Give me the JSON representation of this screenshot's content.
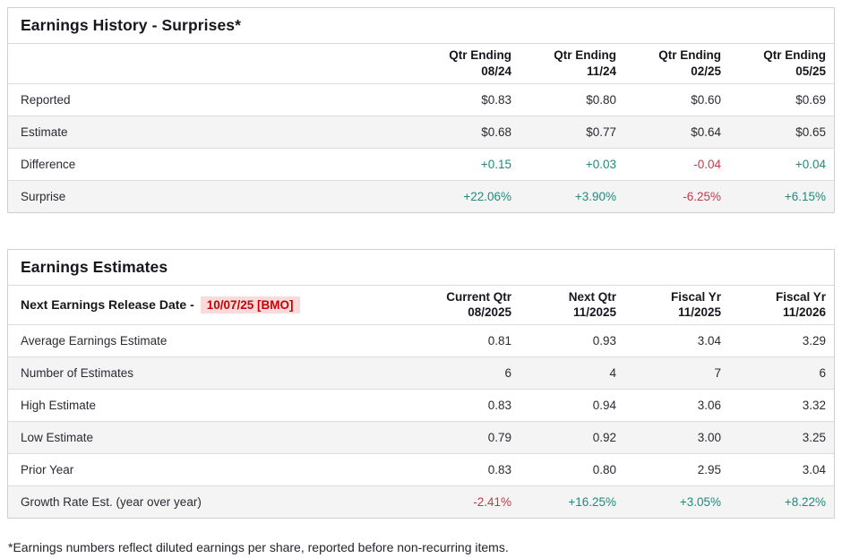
{
  "earnings_history": {
    "title": "Earnings History - Surprises*",
    "columns": [
      {
        "l1": "Qtr Ending",
        "l2": "08/24"
      },
      {
        "l1": "Qtr Ending",
        "l2": "11/24"
      },
      {
        "l1": "Qtr Ending",
        "l2": "02/25"
      },
      {
        "l1": "Qtr Ending",
        "l2": "05/25"
      }
    ],
    "rows": [
      {
        "label": "Reported",
        "values": [
          "$0.83",
          "$0.80",
          "$0.60",
          "$0.69"
        ]
      },
      {
        "label": "Estimate",
        "values": [
          "$0.68",
          "$0.77",
          "$0.64",
          "$0.65"
        ]
      },
      {
        "label": "Difference",
        "values": [
          "+0.15",
          "+0.03",
          "-0.04",
          "+0.04"
        ]
      },
      {
        "label": "Surprise",
        "values": [
          "+22.06%",
          "+3.90%",
          "-6.25%",
          "+6.15%"
        ]
      }
    ]
  },
  "earnings_estimates": {
    "title": "Earnings Estimates",
    "release_date": {
      "label": "Next Earnings Release Date -",
      "value": "10/07/25 [BMO]"
    },
    "columns": [
      {
        "l1": "Current Qtr",
        "l2": "08/2025"
      },
      {
        "l1": "Next Qtr",
        "l2": "11/2025"
      },
      {
        "l1": "Fiscal Yr",
        "l2": "11/2025"
      },
      {
        "l1": "Fiscal Yr",
        "l2": "11/2026"
      }
    ],
    "rows": [
      {
        "label": "Average Earnings Estimate",
        "values": [
          "0.81",
          "0.93",
          "3.04",
          "3.29"
        ]
      },
      {
        "label": "Number of Estimates",
        "values": [
          "6",
          "4",
          "7",
          "6"
        ]
      },
      {
        "label": "High Estimate",
        "values": [
          "0.83",
          "0.94",
          "3.06",
          "3.32"
        ]
      },
      {
        "label": "Low Estimate",
        "values": [
          "0.79",
          "0.92",
          "3.00",
          "3.25"
        ]
      },
      {
        "label": "Prior Year",
        "values": [
          "0.83",
          "0.80",
          "2.95",
          "3.04"
        ]
      },
      {
        "label": "Growth Rate Est. (year over year)",
        "values": [
          "-2.41%",
          "+16.25%",
          "+3.05%",
          "+8.22%"
        ]
      }
    ]
  },
  "footnote": "*Earnings numbers reflect diluted earnings per share, reported before non-recurring items.",
  "colors": {
    "positive": "#1f8a7d",
    "negative": "#c43a4b",
    "release_date_text": "#cc0000",
    "release_date_bg": "#fadbdb",
    "row_alt_bg": "#f4f4f4",
    "border": "#cfcfcf"
  }
}
